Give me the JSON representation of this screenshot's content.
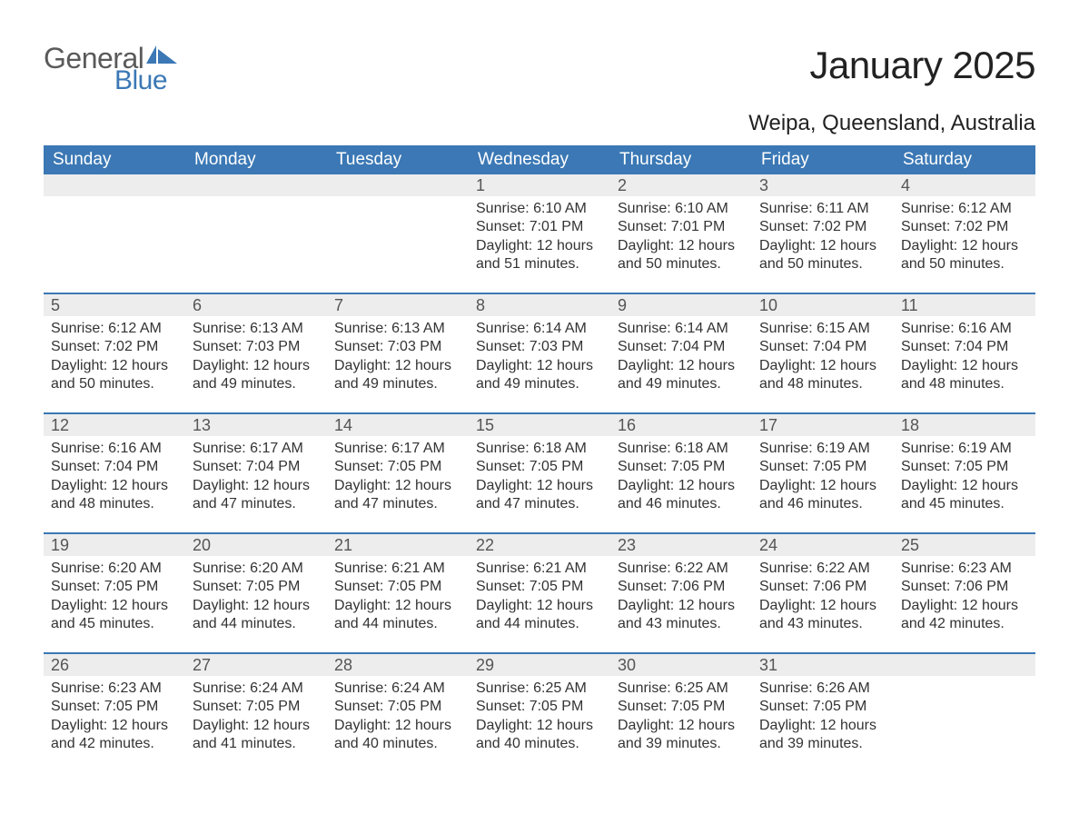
{
  "logo": {
    "general": "General",
    "blue": "Blue",
    "flag_color": "#3b78b5"
  },
  "title": "January 2025",
  "location": "Weipa, Queensland, Australia",
  "colors": {
    "header_bg": "#3b78b5",
    "header_text": "#ffffff",
    "daynum_bg": "#ededed",
    "text": "#333333",
    "week_border": "#3b78b5"
  },
  "weekdays": [
    "Sunday",
    "Monday",
    "Tuesday",
    "Wednesday",
    "Thursday",
    "Friday",
    "Saturday"
  ],
  "weeks": [
    [
      {
        "empty": true
      },
      {
        "empty": true
      },
      {
        "empty": true
      },
      {
        "num": "1",
        "sunrise": "Sunrise: 6:10 AM",
        "sunset": "Sunset: 7:01 PM",
        "daylight": "Daylight: 12 hours and 51 minutes."
      },
      {
        "num": "2",
        "sunrise": "Sunrise: 6:10 AM",
        "sunset": "Sunset: 7:01 PM",
        "daylight": "Daylight: 12 hours and 50 minutes."
      },
      {
        "num": "3",
        "sunrise": "Sunrise: 6:11 AM",
        "sunset": "Sunset: 7:02 PM",
        "daylight": "Daylight: 12 hours and 50 minutes."
      },
      {
        "num": "4",
        "sunrise": "Sunrise: 6:12 AM",
        "sunset": "Sunset: 7:02 PM",
        "daylight": "Daylight: 12 hours and 50 minutes."
      }
    ],
    [
      {
        "num": "5",
        "sunrise": "Sunrise: 6:12 AM",
        "sunset": "Sunset: 7:02 PM",
        "daylight": "Daylight: 12 hours and 50 minutes."
      },
      {
        "num": "6",
        "sunrise": "Sunrise: 6:13 AM",
        "sunset": "Sunset: 7:03 PM",
        "daylight": "Daylight: 12 hours and 49 minutes."
      },
      {
        "num": "7",
        "sunrise": "Sunrise: 6:13 AM",
        "sunset": "Sunset: 7:03 PM",
        "daylight": "Daylight: 12 hours and 49 minutes."
      },
      {
        "num": "8",
        "sunrise": "Sunrise: 6:14 AM",
        "sunset": "Sunset: 7:03 PM",
        "daylight": "Daylight: 12 hours and 49 minutes."
      },
      {
        "num": "9",
        "sunrise": "Sunrise: 6:14 AM",
        "sunset": "Sunset: 7:04 PM",
        "daylight": "Daylight: 12 hours and 49 minutes."
      },
      {
        "num": "10",
        "sunrise": "Sunrise: 6:15 AM",
        "sunset": "Sunset: 7:04 PM",
        "daylight": "Daylight: 12 hours and 48 minutes."
      },
      {
        "num": "11",
        "sunrise": "Sunrise: 6:16 AM",
        "sunset": "Sunset: 7:04 PM",
        "daylight": "Daylight: 12 hours and 48 minutes."
      }
    ],
    [
      {
        "num": "12",
        "sunrise": "Sunrise: 6:16 AM",
        "sunset": "Sunset: 7:04 PM",
        "daylight": "Daylight: 12 hours and 48 minutes."
      },
      {
        "num": "13",
        "sunrise": "Sunrise: 6:17 AM",
        "sunset": "Sunset: 7:04 PM",
        "daylight": "Daylight: 12 hours and 47 minutes."
      },
      {
        "num": "14",
        "sunrise": "Sunrise: 6:17 AM",
        "sunset": "Sunset: 7:05 PM",
        "daylight": "Daylight: 12 hours and 47 minutes."
      },
      {
        "num": "15",
        "sunrise": "Sunrise: 6:18 AM",
        "sunset": "Sunset: 7:05 PM",
        "daylight": "Daylight: 12 hours and 47 minutes."
      },
      {
        "num": "16",
        "sunrise": "Sunrise: 6:18 AM",
        "sunset": "Sunset: 7:05 PM",
        "daylight": "Daylight: 12 hours and 46 minutes."
      },
      {
        "num": "17",
        "sunrise": "Sunrise: 6:19 AM",
        "sunset": "Sunset: 7:05 PM",
        "daylight": "Daylight: 12 hours and 46 minutes."
      },
      {
        "num": "18",
        "sunrise": "Sunrise: 6:19 AM",
        "sunset": "Sunset: 7:05 PM",
        "daylight": "Daylight: 12 hours and 45 minutes."
      }
    ],
    [
      {
        "num": "19",
        "sunrise": "Sunrise: 6:20 AM",
        "sunset": "Sunset: 7:05 PM",
        "daylight": "Daylight: 12 hours and 45 minutes."
      },
      {
        "num": "20",
        "sunrise": "Sunrise: 6:20 AM",
        "sunset": "Sunset: 7:05 PM",
        "daylight": "Daylight: 12 hours and 44 minutes."
      },
      {
        "num": "21",
        "sunrise": "Sunrise: 6:21 AM",
        "sunset": "Sunset: 7:05 PM",
        "daylight": "Daylight: 12 hours and 44 minutes."
      },
      {
        "num": "22",
        "sunrise": "Sunrise: 6:21 AM",
        "sunset": "Sunset: 7:05 PM",
        "daylight": "Daylight: 12 hours and 44 minutes."
      },
      {
        "num": "23",
        "sunrise": "Sunrise: 6:22 AM",
        "sunset": "Sunset: 7:06 PM",
        "daylight": "Daylight: 12 hours and 43 minutes."
      },
      {
        "num": "24",
        "sunrise": "Sunrise: 6:22 AM",
        "sunset": "Sunset: 7:06 PM",
        "daylight": "Daylight: 12 hours and 43 minutes."
      },
      {
        "num": "25",
        "sunrise": "Sunrise: 6:23 AM",
        "sunset": "Sunset: 7:06 PM",
        "daylight": "Daylight: 12 hours and 42 minutes."
      }
    ],
    [
      {
        "num": "26",
        "sunrise": "Sunrise: 6:23 AM",
        "sunset": "Sunset: 7:05 PM",
        "daylight": "Daylight: 12 hours and 42 minutes."
      },
      {
        "num": "27",
        "sunrise": "Sunrise: 6:24 AM",
        "sunset": "Sunset: 7:05 PM",
        "daylight": "Daylight: 12 hours and 41 minutes."
      },
      {
        "num": "28",
        "sunrise": "Sunrise: 6:24 AM",
        "sunset": "Sunset: 7:05 PM",
        "daylight": "Daylight: 12 hours and 40 minutes."
      },
      {
        "num": "29",
        "sunrise": "Sunrise: 6:25 AM",
        "sunset": "Sunset: 7:05 PM",
        "daylight": "Daylight: 12 hours and 40 minutes."
      },
      {
        "num": "30",
        "sunrise": "Sunrise: 6:25 AM",
        "sunset": "Sunset: 7:05 PM",
        "daylight": "Daylight: 12 hours and 39 minutes."
      },
      {
        "num": "31",
        "sunrise": "Sunrise: 6:26 AM",
        "sunset": "Sunset: 7:05 PM",
        "daylight": "Daylight: 12 hours and 39 minutes."
      },
      {
        "empty": true
      }
    ]
  ]
}
